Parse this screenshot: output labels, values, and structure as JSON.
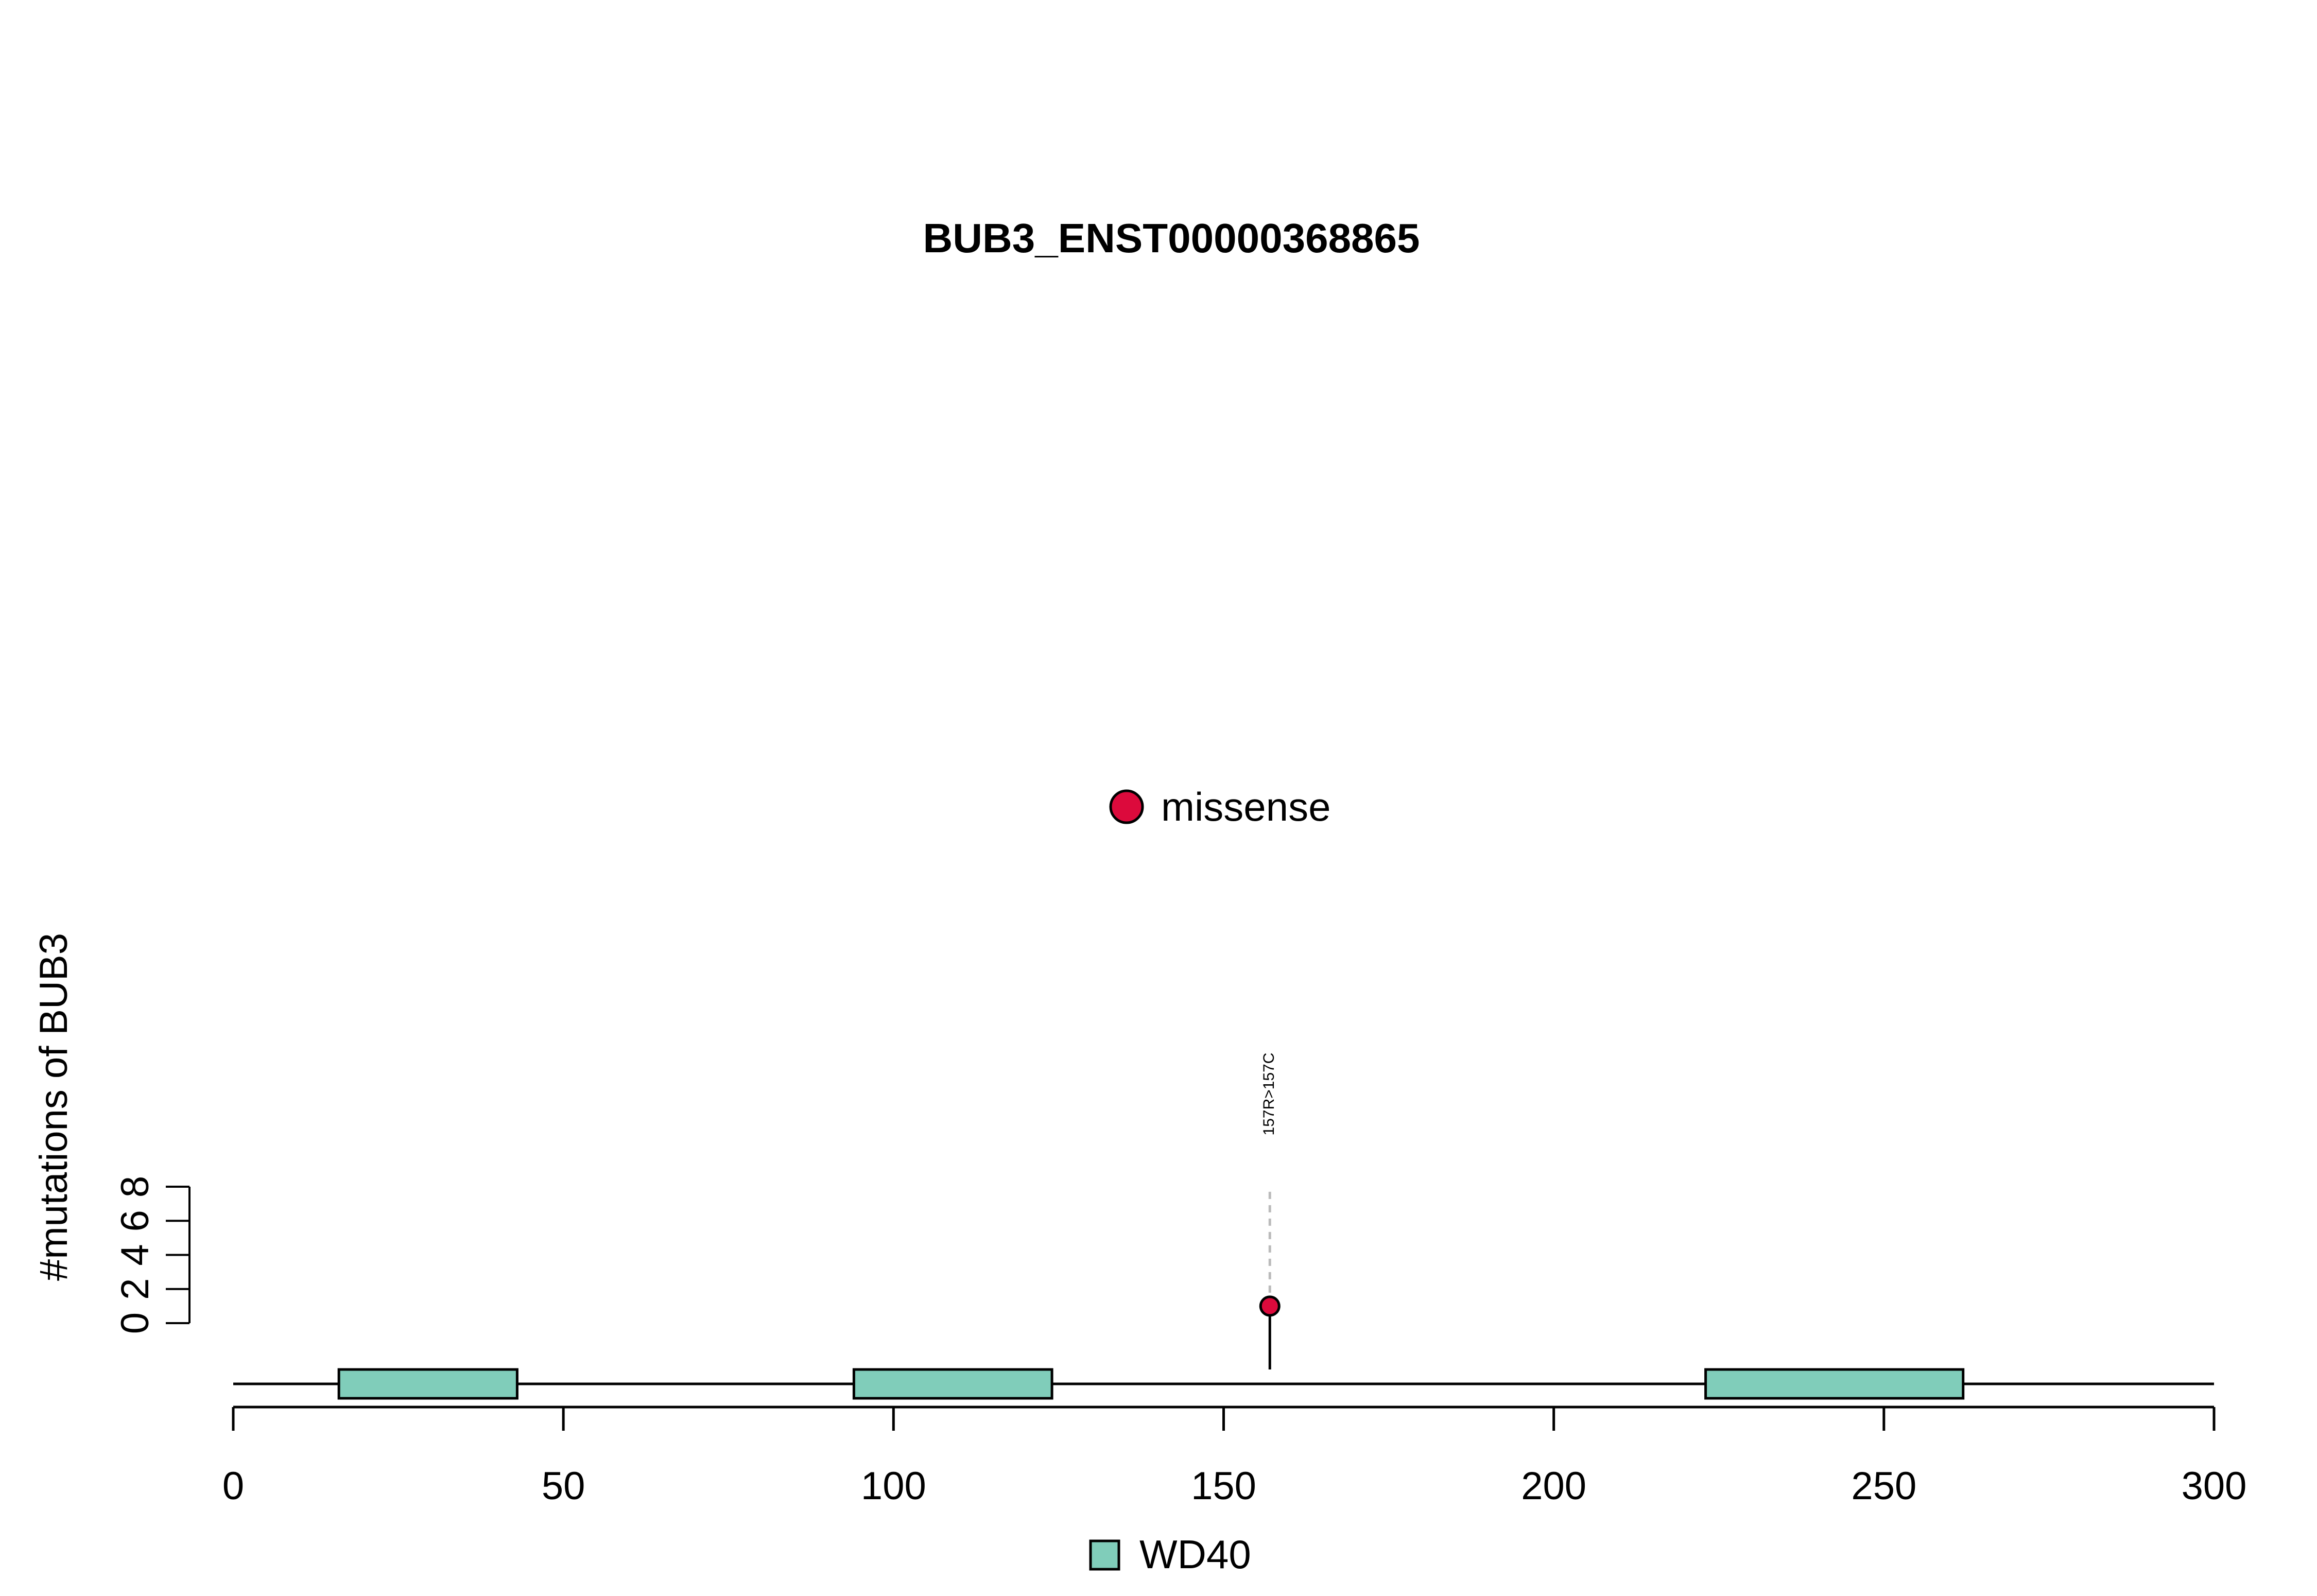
{
  "chart_data": {
    "type": "lollipop",
    "title": "BUB3_ENST00000368865",
    "ylabel": "#mutations of BUB3",
    "xlim": [
      0,
      300
    ],
    "x_ticks": [
      0,
      50,
      100,
      150,
      200,
      250,
      300
    ],
    "y_ticks": [
      0,
      2,
      4,
      6,
      8
    ],
    "ylim": [
      0,
      8
    ],
    "mutation_legend": [
      {
        "label": "missense",
        "color": "#DC0A3C"
      }
    ],
    "mutations": [
      {
        "position": 157,
        "count": 1,
        "type": "missense",
        "label": "157R>157C",
        "color": "#DC0A3C"
      }
    ],
    "domain_legend": [
      {
        "label": "WD40",
        "color": "#80CDBA"
      }
    ],
    "domains": [
      {
        "name": "WD40",
        "start": 16,
        "end": 43,
        "color": "#80CDBA"
      },
      {
        "name": "WD40",
        "start": 94,
        "end": 124,
        "color": "#80CDBA"
      },
      {
        "name": "WD40",
        "start": 223,
        "end": 262,
        "color": "#80CDBA"
      }
    ]
  }
}
